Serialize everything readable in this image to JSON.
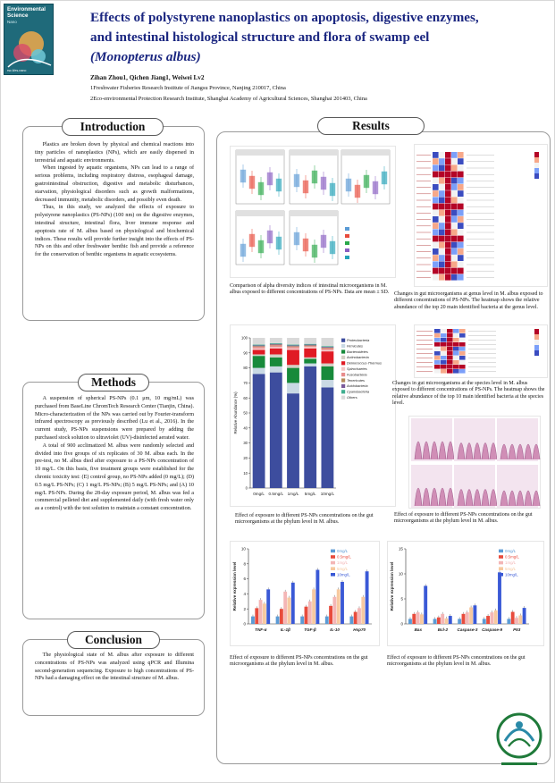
{
  "journal": {
    "title_line1": "Environmental",
    "title_line2": "Science",
    "sub": "Nano",
    "foot": "rsc.li/es-nano"
  },
  "header": {
    "title_l1": "Effects of polystyrene nanoplastics on apoptosis, digestive enzymes,",
    "title_l2": "and intestinal histological structure and flora of swamp eel",
    "title_l3": "(Monopterus albus)",
    "authors": "Zihan Zhou1, Qichen Jiang1, Weiwei Lv2",
    "aff1": "1Freshwater Fisheries Research Institute of Jiangsu Province, Nanjing 210017, China",
    "aff2": "2Eco-environmental Protection Research Institute, Shanghai Academy of Agricultural Sciences, Shanghai 201403, China"
  },
  "introduction": {
    "heading": "Introduction",
    "p1": "Plastics are broken down by physical and chemical reactions into tiny particles of nanoplastics (NPs), which are easily dispersed in terrestrial and aquatic environments.",
    "p2": "When ingested by aquatic organisms, NPs can lead to a range of serious problems, including respiratory distress, esophageal damage, gastrointestinal obstruction, digestive and metabolic disturbances, starvation, physiological disorders such as growth malformations, decreased immunity, metabolic disorders, and possibly even death.",
    "p3": "Thus, in this study, we analyzed the effects of exposure to polystyrene nanoplastics (PS-NPs) (100 nm) on the digestive enzymes, intestinal structure, intestinal flora, liver immune response and apoptosis rate of M. albus based on physiological and biochemical indices. These results will provide further insight into the effects of PS-NPs on this and other freshwater benthic fish and provide a reference for the conservation of benthic organisms in aquatic ecosystems."
  },
  "methods": {
    "heading": "Methods",
    "p1": "A suspension of spherical PS-NPs (0.1 μm, 10 mg/mL) was purchased from BaseLine ChromTech Research Center (Tianjin, China). Micro-characterization of the NPs was carried out by Fourier-transform infrared spectroscopy as previously described (Lu et al., 2016). In the current study, PS-NPs suspensions were prepared by adding the purchased stock solution to ultraviolet (UV)-disinfected aerated water.",
    "p2": "A total of 900 acclimatized M. albus were randomly selected and divided into five groups of six replicates of 30 M. albus each. In the pre-test, no M. albus died after exposure to a PS-NPs concentration of 10 mg/L. On this basis, five treatment groups were established for the chronic toxicity test: (E) control group, no PS-NPs added (0 mg/L); (D) 0.5 mg/L PS-NPs; (C) 1 mg/L PS-NPs; (B) 5 mg/L PS-NPs; and (A) 10 mg/L PS-NPs. During the 28-day exposure period, M. albus was fed a commercial pelleted diet and supplemented daily (with fresh water only as a control) with the test solution to maintain a constant concentration."
  },
  "conclusion": {
    "heading": "Conclusion",
    "p1": "The physiological state of M. albus after exposure to different concentrations of PS-NPs was analyzed using qPCR and Illumina second-generation sequencing. Exposure to high concentrations of PS-NPs had a damaging effect on the intestinal structure of M. albus."
  },
  "results": {
    "heading": "Results",
    "cap_alpha": "Comparison of alpha diversity indices of intestinal microorganisms in M. albus exposed to different concentrations of PS-NPs. Data are mean ± SD.",
    "cap_genus": "Changes in gut microorganisms at genus level in M. albus exposed to different concentrations of PS-NPs. The heatmap shows the relative abundance of the top 20 main identified bacteria at the genus level.",
    "cap_species": "Changes in gut microorganisms at the species level in M. albus exposed to different concentrations of PS-NPs. The heatmap shows the relative abundance of the top 10 main identified bacteria at the species level.",
    "cap_phylum": "Effect of exposure to different PS-NPs concentrations on the gut microorganisms at the phylum level in M. albus.",
    "cap_histo": "Effect of exposure to different PS-NPs concentrations on the gut microorganisms at the phylum level in M. albus.",
    "cap_immune": "Effect of exposure to different PS-NPs concentrations on the gut microorganisms at the phylum level in M. albus.",
    "cap_apop": "Effect of exposure to different PS-NPs concentrations on the gut microorganisms at the phylum level in M. albus."
  },
  "colors": {
    "title_blue": "#1a2680",
    "c0": "#5b9bd5",
    "c05": "#e84c3d",
    "c1": "#f4b6b6",
    "c5": "#f7c9a0",
    "c10": "#3a59d6"
  },
  "chart_data": [
    {
      "type": "bar",
      "stacked": true,
      "ylabel": "Relative Abundance (%)",
      "categories": [
        "0mg/L",
        "0.5mg/L",
        "1mg/L",
        "5mg/L",
        "10mg/L"
      ],
      "ylim": [
        0,
        100
      ],
      "yticks": [
        "0",
        "10",
        "20",
        "30",
        "40",
        "50",
        "60",
        "70",
        "80",
        "90",
        "100"
      ],
      "series": [
        {
          "name": "Proteobacteria",
          "color": "#3d4d9e",
          "values": [
            76,
            77,
            63,
            81,
            67
          ]
        },
        {
          "name": "Firmicutes",
          "color": "#c9d9e4",
          "values": [
            4,
            4,
            7,
            2,
            5
          ]
        },
        {
          "name": "Bacteroidetes",
          "color": "#178a3b",
          "values": [
            8,
            6,
            10,
            3,
            9
          ]
        },
        {
          "name": "Actinobacteria",
          "color": "#d3cfc4",
          "values": [
            1,
            2,
            2,
            1,
            2
          ]
        },
        {
          "name": "Deinococcus-Thermus",
          "color": "#e01b24",
          "values": [
            3,
            4,
            10,
            6,
            8
          ]
        },
        {
          "name": "Spirochaetes",
          "color": "#f4c6c6",
          "values": [
            1,
            1,
            1,
            1,
            1
          ]
        },
        {
          "name": "Fusobacteria",
          "color": "#e88c8c",
          "values": [
            1,
            1,
            1,
            0.5,
            1
          ]
        },
        {
          "name": "Tenericutes",
          "color": "#b48a5a",
          "values": [
            0.5,
            0.5,
            0.5,
            0.5,
            0.5
          ]
        },
        {
          "name": "Acidobacteria",
          "color": "#7a5a9a",
          "values": [
            0.5,
            0.5,
            0.5,
            0.5,
            0.5
          ]
        },
        {
          "name": "Cyanobacteria",
          "color": "#3fae8f",
          "values": [
            0.5,
            0.5,
            0.5,
            0.5,
            0.5
          ]
        },
        {
          "name": "Others",
          "color": "#d9d9d9",
          "values": [
            4.5,
            3.5,
            4.5,
            4,
            5.5
          ]
        }
      ]
    },
    {
      "type": "bar",
      "ylabel": "Relative expression level",
      "categories": [
        "TNF-α",
        "IL-1β",
        "TGF-β",
        "IL-10",
        "Hsp70"
      ],
      "ylim": [
        0,
        10
      ],
      "yticks": [
        "0",
        "2",
        "4",
        "6",
        "8",
        "10"
      ],
      "series": [
        {
          "name": "0mg/L",
          "values": [
            1.0,
            1.0,
            1.0,
            1.0,
            1.0
          ]
        },
        {
          "name": "0.5mg/L",
          "values": [
            2.1,
            2.0,
            2.3,
            2.4,
            1.6
          ]
        },
        {
          "name": "1mg/L",
          "values": [
            3.2,
            4.3,
            3.0,
            3.6,
            2.1
          ]
        },
        {
          "name": "5mg/L",
          "values": [
            2.7,
            3.5,
            4.6,
            4.6,
            3.6
          ]
        },
        {
          "name": "10mg/L",
          "values": [
            4.6,
            5.5,
            7.2,
            5.6,
            7.0
          ]
        }
      ]
    },
    {
      "type": "bar",
      "ylabel": "Relative expression level",
      "categories": [
        "Bax",
        "Bcl-2",
        "Caspase-3",
        "Caspase-9",
        "P53"
      ],
      "ylim": [
        0,
        15
      ],
      "yticks": [
        "0",
        "5",
        "10",
        "15"
      ],
      "series": [
        {
          "name": "0mg/L",
          "values": [
            1.0,
            1.0,
            1.0,
            1.0,
            1.0
          ]
        },
        {
          "name": "0.5mg/L",
          "values": [
            2.0,
            1.3,
            2.0,
            1.6,
            2.4
          ]
        },
        {
          "name": "1mg/L",
          "values": [
            2.3,
            2.0,
            2.3,
            2.3,
            1.2
          ]
        },
        {
          "name": "5mg/L",
          "values": [
            1.9,
            1.1,
            3.3,
            2.7,
            1.7
          ]
        },
        {
          "name": "10mg/L",
          "values": [
            7.6,
            1.6,
            3.7,
            10.3,
            3.2
          ]
        }
      ]
    }
  ]
}
